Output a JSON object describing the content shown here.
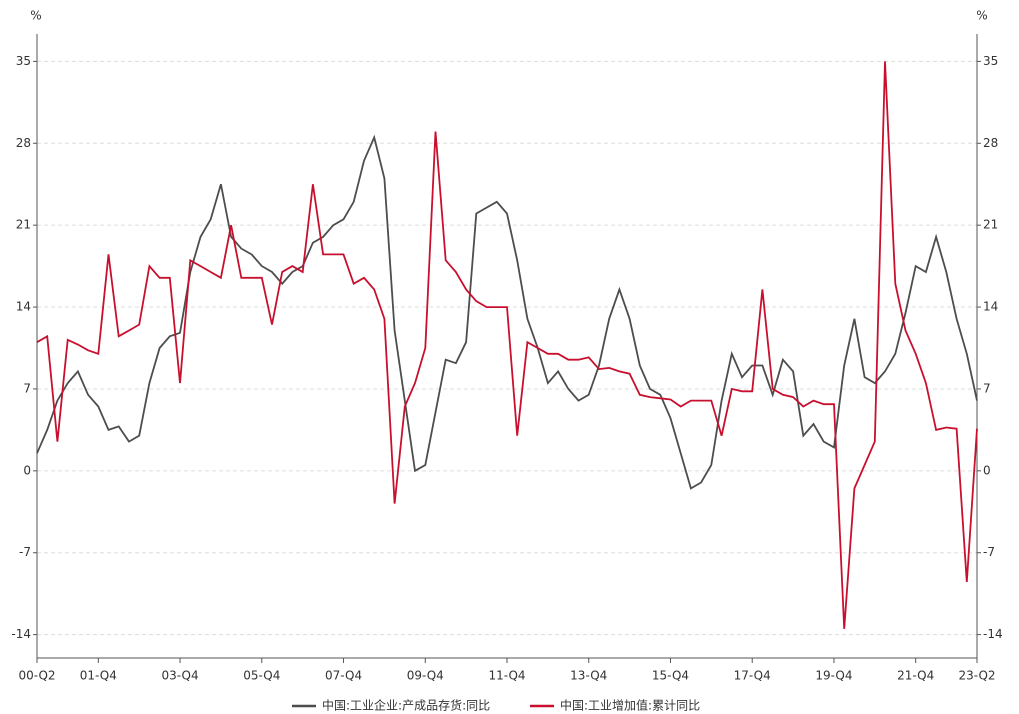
{
  "chart_data": {
    "type": "line",
    "y_unit": "%",
    "y2_unit": "%",
    "categories": [
      "00-Q2",
      null,
      null,
      null,
      null,
      null,
      "01-Q4",
      null,
      null,
      null,
      null,
      null,
      null,
      null,
      "03-Q4",
      null,
      null,
      null,
      null,
      null,
      null,
      null,
      "05-Q4",
      null,
      null,
      null,
      null,
      null,
      null,
      null,
      "07-Q4",
      null,
      null,
      null,
      null,
      null,
      null,
      null,
      "09-Q4",
      null,
      null,
      null,
      null,
      null,
      null,
      null,
      "11-Q4",
      null,
      null,
      null,
      null,
      null,
      null,
      null,
      "13-Q4",
      null,
      null,
      null,
      null,
      null,
      null,
      null,
      "15-Q4",
      null,
      null,
      null,
      null,
      null,
      null,
      null,
      "17-Q4",
      null,
      null,
      null,
      null,
      null,
      null,
      null,
      "19-Q4",
      null,
      null,
      null,
      null,
      null,
      null,
      null,
      "21-Q4",
      null,
      null,
      null,
      null,
      null,
      "23-Q2"
    ],
    "series": [
      {
        "name": "中国:工业企业:产成品存货:同比",
        "color": "#4d4d4d",
        "values": [
          1.5,
          3.5,
          6,
          7.5,
          8.5,
          6.5,
          5.5,
          3.5,
          3.8,
          2.5,
          3,
          7.5,
          10.5,
          11.5,
          11.8,
          17,
          20,
          21.5,
          24.5,
          20,
          19,
          18.5,
          17.5,
          17,
          16,
          17,
          17.5,
          19.5,
          20,
          21,
          21.5,
          23,
          26.5,
          28.5,
          25,
          12,
          6,
          0,
          0.5,
          5,
          9.5,
          9.2,
          11,
          22,
          22.5,
          23,
          22,
          18,
          13,
          10.5,
          7.5,
          8.5,
          7,
          6,
          6.5,
          9,
          13,
          15.5,
          13,
          9,
          7,
          6.5,
          4.5,
          1.5,
          -1.5,
          -1,
          0.5,
          6,
          10,
          8,
          9,
          9,
          6.5,
          9.5,
          8.5,
          3,
          4,
          2.5,
          2,
          9,
          13,
          8,
          7.5,
          8.5,
          10,
          13.5,
          17.5,
          17,
          20,
          17,
          13,
          10,
          6
        ]
      },
      {
        "name": "中国:工业增加值:累计同比",
        "color": "#c8102e",
        "axis": "y2",
        "values": [
          11,
          11.5,
          2.5,
          11.2,
          10.8,
          10.3,
          10,
          18.5,
          11.5,
          12,
          12.5,
          17.5,
          16.5,
          16.5,
          7.5,
          18,
          17.5,
          17,
          16.5,
          21,
          16.5,
          16.5,
          16.5,
          12.5,
          17,
          17.5,
          17,
          24.5,
          18.5,
          18.5,
          18.5,
          16,
          16.5,
          15.5,
          13,
          -2.8,
          5.5,
          7.5,
          10.5,
          29,
          18,
          17,
          15.5,
          14.5,
          14,
          14,
          14,
          3,
          11,
          10.5,
          10,
          10,
          9.5,
          9.5,
          9.7,
          8.7,
          8.8,
          8.5,
          8.3,
          6.5,
          6.3,
          6.2,
          6.1,
          5.5,
          6,
          6,
          6,
          3,
          7,
          6.8,
          6.8,
          15.5,
          7,
          6.5,
          6.3,
          5.5,
          6,
          5.7,
          5.7,
          -13.5,
          -1.5,
          0.5,
          2.5,
          35,
          16,
          12,
          10,
          7.5,
          3.5,
          3.7,
          3.6,
          -9.5,
          3.6
        ]
      }
    ],
    "ylim": [
      -16,
      37
    ],
    "yticks": [
      -14,
      -7,
      0,
      7,
      14,
      21,
      28,
      35
    ],
    "y2lim": [
      -16,
      37
    ],
    "y2ticks": [
      -14,
      -7,
      0,
      7,
      14,
      21,
      28,
      35
    ],
    "grid": true,
    "legend": "bottom"
  }
}
